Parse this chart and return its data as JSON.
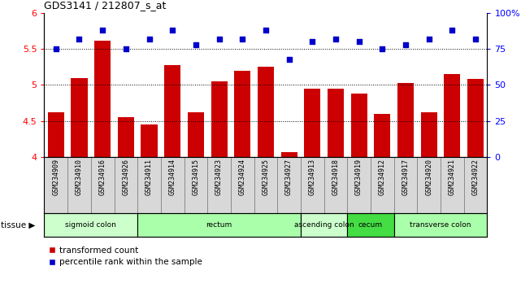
{
  "title": "GDS3141 / 212807_s_at",
  "samples": [
    "GSM234909",
    "GSM234910",
    "GSM234916",
    "GSM234926",
    "GSM234911",
    "GSM234914",
    "GSM234915",
    "GSM234923",
    "GSM234924",
    "GSM234925",
    "GSM234927",
    "GSM234913",
    "GSM234918",
    "GSM234919",
    "GSM234912",
    "GSM234917",
    "GSM234920",
    "GSM234921",
    "GSM234922"
  ],
  "bar_values": [
    4.62,
    5.1,
    5.62,
    4.55,
    4.45,
    5.28,
    4.62,
    5.05,
    5.2,
    5.25,
    4.07,
    4.95,
    4.95,
    4.88,
    4.6,
    5.03,
    4.62,
    5.15,
    5.08
  ],
  "dot_values": [
    75,
    82,
    88,
    75,
    82,
    88,
    78,
    82,
    82,
    88,
    68,
    80,
    82,
    80,
    75,
    78,
    82,
    88,
    82
  ],
  "bar_color": "#cc0000",
  "dot_color": "#0000cc",
  "ylim_left": [
    4.0,
    6.0
  ],
  "ylim_right": [
    0,
    100
  ],
  "yticks_left": [
    4.0,
    4.5,
    5.0,
    5.5,
    6.0
  ],
  "ytick_labels_left": [
    "4",
    "4.5",
    "5",
    "5.5",
    "6"
  ],
  "yticks_right": [
    0,
    25,
    50,
    75,
    100
  ],
  "ytick_labels_right": [
    "0",
    "25",
    "50",
    "75",
    "100%"
  ],
  "hlines": [
    4.5,
    5.0,
    5.5
  ],
  "tissues": [
    {
      "label": "sigmoid colon",
      "start": 0,
      "end": 4,
      "color": "#ccffcc"
    },
    {
      "label": "rectum",
      "start": 4,
      "end": 11,
      "color": "#aaffaa"
    },
    {
      "label": "ascending colon",
      "start": 11,
      "end": 13,
      "color": "#ccffcc"
    },
    {
      "label": "cecum",
      "start": 13,
      "end": 15,
      "color": "#44dd44"
    },
    {
      "label": "transverse colon",
      "start": 15,
      "end": 19,
      "color": "#aaffaa"
    }
  ],
  "tissue_label": "tissue",
  "legend_bar_label": "transformed count",
  "legend_dot_label": "percentile rank within the sample",
  "fig_bg_color": "#ffffff",
  "plot_bg_color": "#ffffff",
  "xticklabel_bg": "#d8d8d8"
}
